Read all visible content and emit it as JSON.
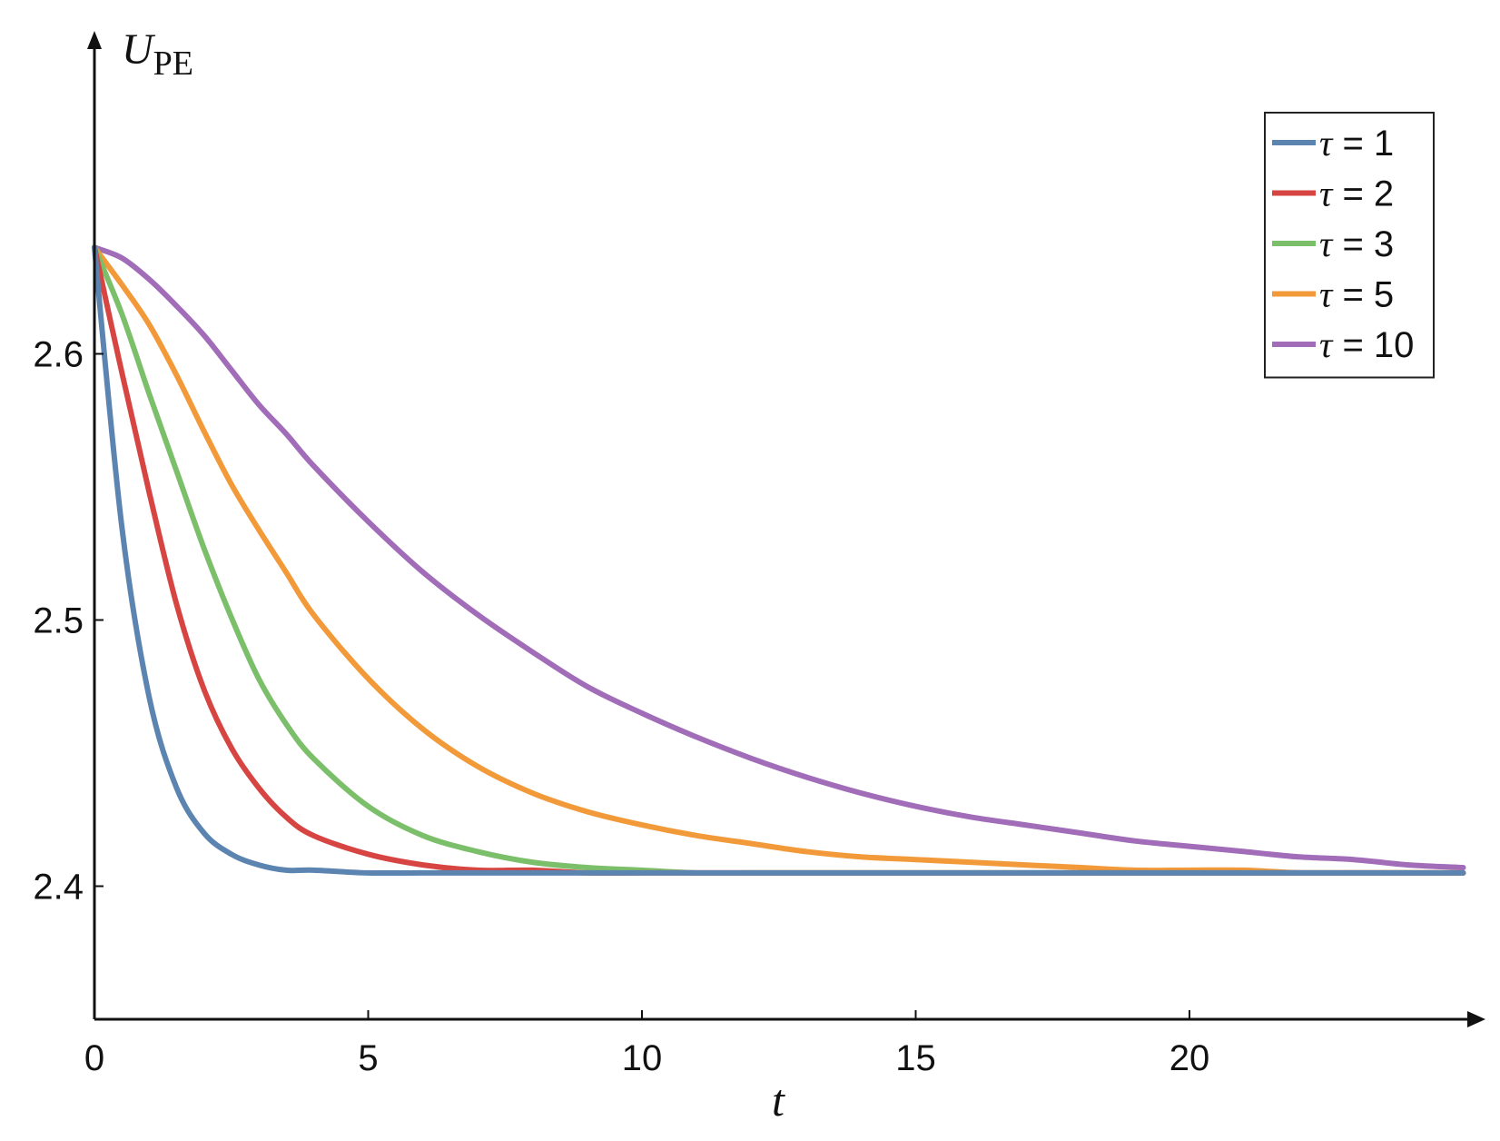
{
  "chart_data": {
    "type": "line",
    "title": "",
    "xlabel": "t",
    "ylabel": {
      "main": "U",
      "sub": "PE"
    },
    "xlim": [
      0,
      25
    ],
    "ylim": [
      2.35,
      2.7
    ],
    "xticks": [
      {
        "value": 0,
        "label": "0"
      },
      {
        "value": 5,
        "label": "5"
      },
      {
        "value": 10,
        "label": "10"
      },
      {
        "value": 15,
        "label": "15"
      },
      {
        "value": 20,
        "label": "20"
      }
    ],
    "yticks": [
      {
        "value": 2.4,
        "label": "2.4"
      },
      {
        "value": 2.5,
        "label": "2.5"
      },
      {
        "value": 2.6,
        "label": "2.6"
      }
    ],
    "grid": false,
    "legend_position": "top-right",
    "x": [
      0,
      0.5,
      1,
      1.5,
      2,
      2.5,
      3,
      3.5,
      4,
      5,
      6,
      7,
      8,
      9,
      10,
      11,
      12,
      13,
      14,
      15,
      16,
      17,
      18,
      19,
      20,
      21,
      22,
      23,
      24,
      25
    ],
    "series": [
      {
        "name": "1",
        "legend_symbol": "τ",
        "legend_value": "1",
        "color": "#5b84b1",
        "values": [
          2.64,
          2.535,
          2.471,
          2.437,
          2.42,
          2.412,
          2.408,
          2.406,
          2.406,
          2.405,
          2.405,
          2.405,
          2.405,
          2.405,
          2.405,
          2.405,
          2.405,
          2.405,
          2.405,
          2.405,
          2.405,
          2.405,
          2.405,
          2.405,
          2.405,
          2.405,
          2.405,
          2.405,
          2.405,
          2.405
        ]
      },
      {
        "name": "2",
        "legend_symbol": "τ",
        "legend_value": "2",
        "color": "#d64541",
        "values": [
          2.64,
          2.593,
          2.548,
          2.506,
          2.474,
          2.452,
          2.437,
          2.426,
          2.419,
          2.412,
          2.408,
          2.406,
          2.406,
          2.405,
          2.405,
          2.405,
          2.405,
          2.405,
          2.405,
          2.405,
          2.405,
          2.405,
          2.405,
          2.405,
          2.405,
          2.405,
          2.405,
          2.405,
          2.405,
          2.405
        ]
      },
      {
        "name": "3",
        "legend_symbol": "τ",
        "legend_value": "3",
        "color": "#7cbf6a",
        "values": [
          2.64,
          2.615,
          2.585,
          2.556,
          2.527,
          2.501,
          2.478,
          2.461,
          2.448,
          2.43,
          2.419,
          2.413,
          2.409,
          2.407,
          2.406,
          2.405,
          2.405,
          2.405,
          2.405,
          2.405,
          2.405,
          2.405,
          2.405,
          2.405,
          2.405,
          2.405,
          2.405,
          2.405,
          2.405,
          2.405
        ]
      },
      {
        "name": "5",
        "legend_symbol": "τ",
        "legend_value": "5",
        "color": "#f29a3a",
        "values": [
          2.64,
          2.626,
          2.611,
          2.592,
          2.571,
          2.551,
          2.534,
          2.518,
          2.502,
          2.478,
          2.459,
          2.445,
          2.435,
          2.428,
          2.423,
          2.419,
          2.416,
          2.413,
          2.411,
          2.41,
          2.409,
          2.408,
          2.407,
          2.406,
          2.406,
          2.406,
          2.405,
          2.405,
          2.405,
          2.405
        ]
      },
      {
        "name": "10",
        "legend_symbol": "τ",
        "legend_value": "10",
        "color": "#a16cb8",
        "values": [
          2.64,
          2.636,
          2.628,
          2.618,
          2.607,
          2.594,
          2.581,
          2.57,
          2.558,
          2.537,
          2.518,
          2.502,
          2.488,
          2.475,
          2.465,
          2.456,
          2.448,
          2.441,
          2.435,
          2.43,
          2.426,
          2.423,
          2.42,
          2.417,
          2.415,
          2.413,
          2.411,
          2.41,
          2.408,
          2.407
        ]
      }
    ]
  }
}
